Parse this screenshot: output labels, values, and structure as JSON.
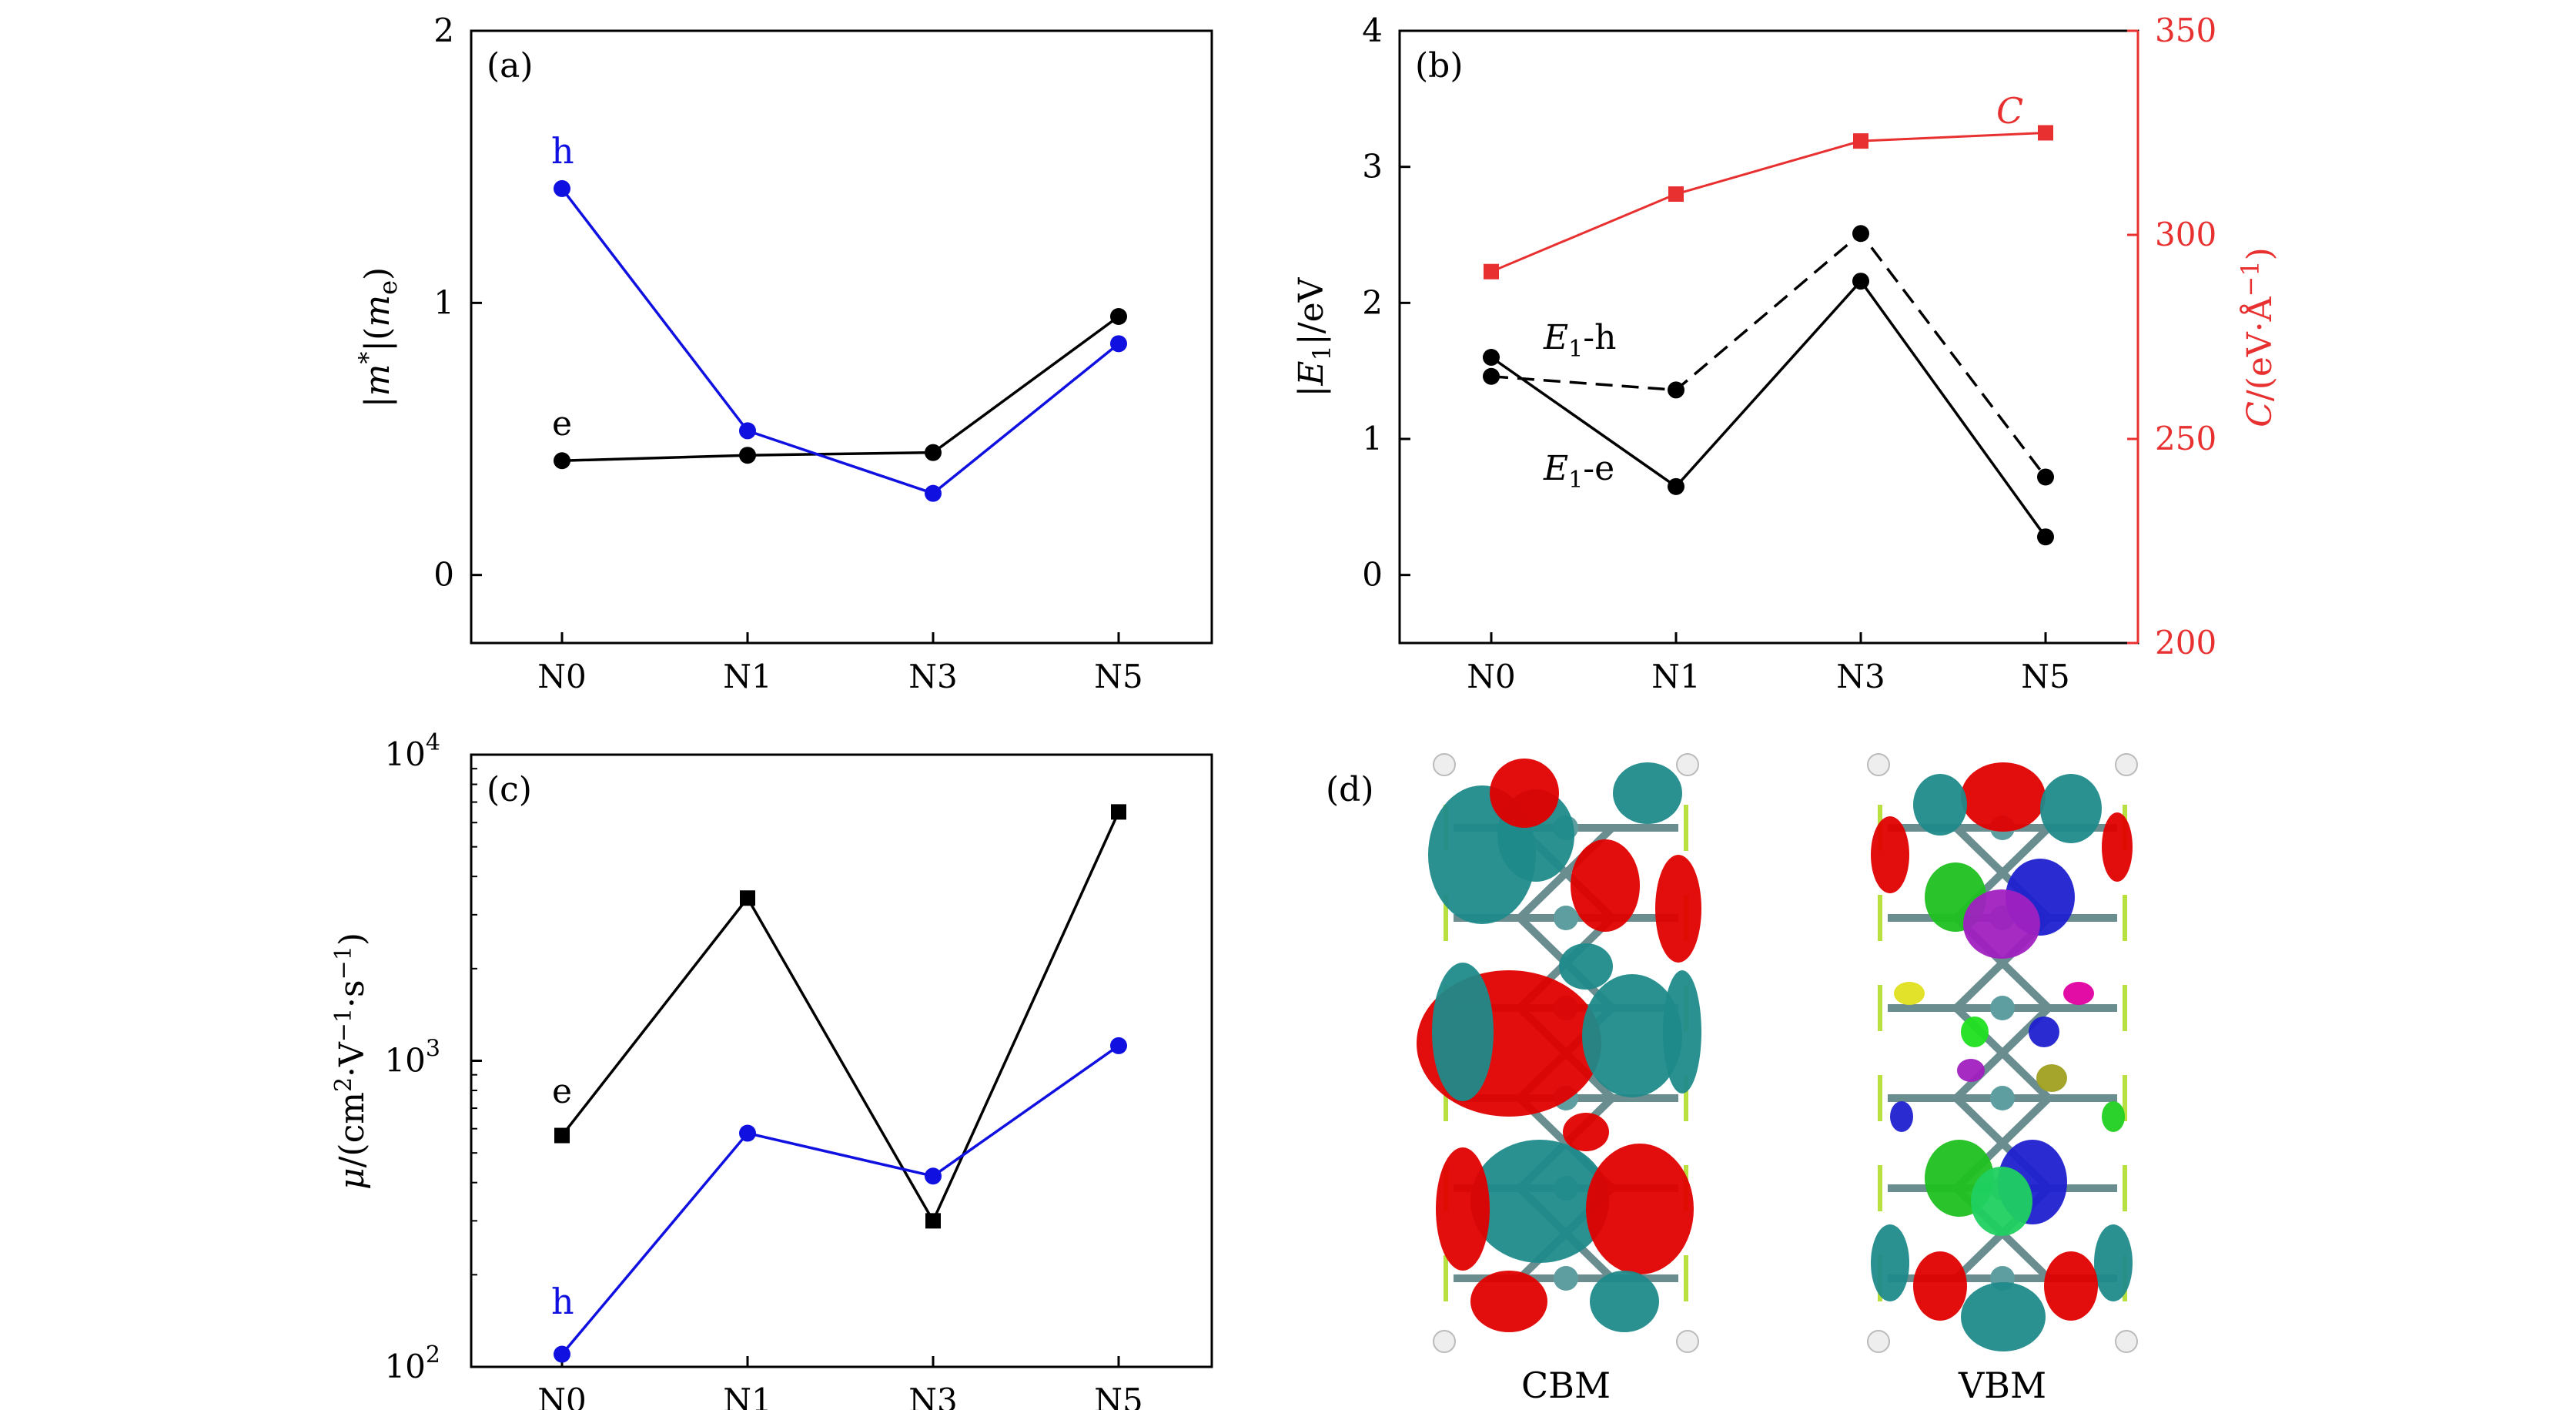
{
  "chart_data": [
    {
      "panel": "(a)",
      "type": "line",
      "categories": [
        "N0",
        "N1",
        "N3",
        "N5"
      ],
      "ylabel": "|m*|(me)",
      "ylim": [
        -0.25,
        2.0
      ],
      "yticks": [
        "0",
        "1",
        "2"
      ],
      "series": [
        {
          "name": "e",
          "color": "#000000",
          "marker": "circle",
          "values": [
            0.42,
            0.44,
            0.45,
            0.95
          ]
        },
        {
          "name": "h",
          "color": "#1010e0",
          "marker": "circle",
          "values": [
            1.42,
            0.53,
            0.3,
            0.85
          ]
        }
      ]
    },
    {
      "panel": "(b)",
      "type": "line",
      "categories": [
        "N0",
        "N1",
        "N3",
        "N5"
      ],
      "ylabel_left": "|E1|/eV",
      "ylabel_right": "C/(eV·Å⁻¹)",
      "ylim_left": [
        -0.5,
        4.0
      ],
      "yticks_left": [
        "0",
        "1",
        "2",
        "3",
        "4"
      ],
      "ylim_right": [
        200,
        350
      ],
      "yticks_right": [
        "200",
        "250",
        "300",
        "350"
      ],
      "series": [
        {
          "name": "E1-h",
          "label_main": "E",
          "label_sub": "1",
          "label_suffix": "-h",
          "color": "#000000",
          "line": "dashed",
          "values": [
            1.46,
            1.36,
            2.51,
            0.72
          ]
        },
        {
          "name": "E1-e",
          "label_main": "E",
          "label_sub": "1",
          "label_suffix": "-e",
          "color": "#000000",
          "line": "solid",
          "values": [
            1.6,
            0.65,
            2.16,
            0.28
          ]
        },
        {
          "name": "C",
          "color": "#e83030",
          "marker": "square",
          "axis": "right",
          "values": [
            291,
            310,
            323,
            325
          ]
        }
      ]
    },
    {
      "panel": "(c)",
      "type": "line",
      "yscale": "log",
      "categories": [
        "N0",
        "N1",
        "N3",
        "N5"
      ],
      "ylabel": "μ/(cm²·V⁻¹·s⁻¹)",
      "ylim": [
        100,
        10000
      ],
      "yticks": [
        {
          "base": "10",
          "exp": "2"
        },
        {
          "base": "10",
          "exp": "3"
        },
        {
          "base": "10",
          "exp": "4"
        }
      ],
      "series": [
        {
          "name": "e",
          "color": "#000000",
          "marker": "square",
          "values": [
            570,
            3400,
            300,
            6500
          ]
        },
        {
          "name": "h",
          "color": "#1010e0",
          "marker": "circle",
          "values": [
            110,
            580,
            420,
            1120
          ]
        }
      ]
    }
  ],
  "panel_d": {
    "label": "(d)",
    "images": [
      {
        "label": "CBM"
      },
      {
        "label": "VBM"
      }
    ]
  },
  "colors": {
    "black": "#000000",
    "blue": "#1010e0",
    "red": "#e83030",
    "teal": "#1f8a8a",
    "iso_red": "#e00000"
  }
}
